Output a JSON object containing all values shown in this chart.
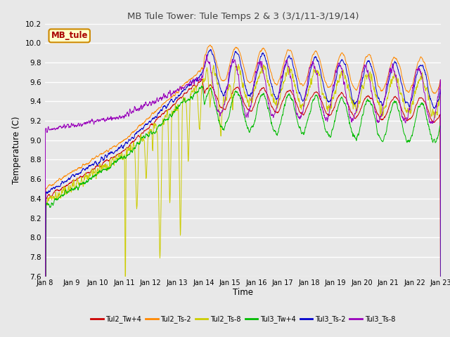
{
  "title": "MB Tule Tower: Tule Temps 2 & 3 (3/1/11-3/19/14)",
  "xlabel": "Time",
  "ylabel": "Temperature (C)",
  "ylim": [
    7.6,
    10.2
  ],
  "yticks": [
    7.6,
    7.8,
    8.0,
    8.2,
    8.4,
    8.6,
    8.8,
    9.0,
    9.2,
    9.4,
    9.6,
    9.8,
    10.0,
    10.2
  ],
  "xtick_labels": [
    "Jan 8",
    "Jan 9",
    "Jan 10",
    "Jan 11",
    "Jan 12",
    "Jan 13",
    "Jan 14",
    "Jan 15",
    "Jan 16",
    "Jan 17",
    "Jan 18",
    "Jan 19",
    "Jan 20",
    "Jan 21",
    "Jan 22",
    "Jan 23"
  ],
  "legend_entries": [
    "Tul2_Tw+4",
    "Tul2_Ts-2",
    "Tul2_Ts-8",
    "Tul3_Tw+4",
    "Tul3_Ts-2",
    "Tul3_Ts-8"
  ],
  "line_colors": [
    "#cc0000",
    "#ff8800",
    "#cccc00",
    "#00bb00",
    "#0000cc",
    "#9900bb"
  ],
  "bg_color": "#e8e8e8",
  "plot_bg_color": "#e8e8e8",
  "grid_color": "#ffffff",
  "watermark_text": "MB_tule",
  "watermark_color": "#aa0000",
  "n_points": 2000
}
